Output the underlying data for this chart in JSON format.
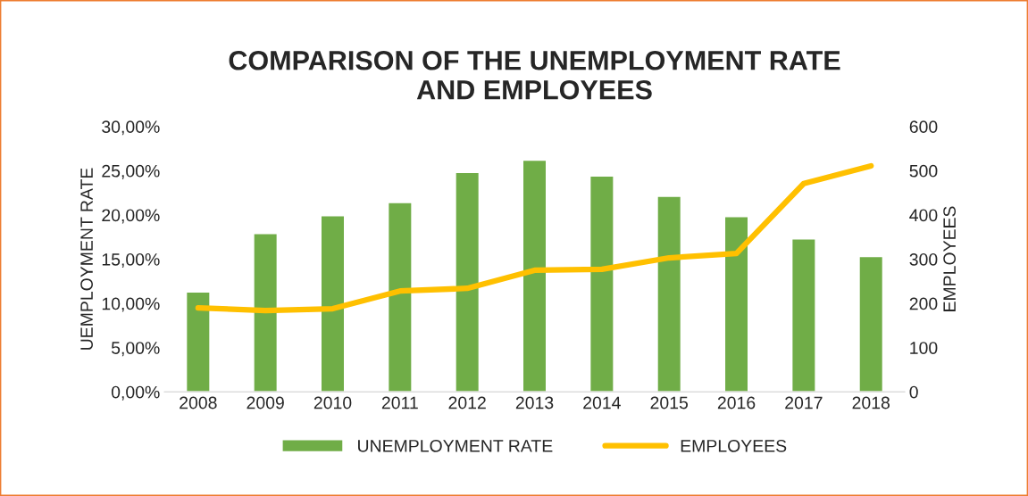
{
  "chart_data": {
    "type": "bar",
    "title": "COMPARISON OF THE UNEMPLOYMENT RATE\nAND EMPLOYEES",
    "ylabel": "UEMPLOYMENT RATE",
    "y2label": "EMPLOYEES",
    "categories": [
      "2008",
      "2009",
      "2010",
      "2011",
      "2012",
      "2013",
      "2014",
      "2015",
      "2016",
      "2017",
      "2018"
    ],
    "series": [
      {
        "name": "UNEMPLOYMENT RATE",
        "color": "#70ad47",
        "values": [
          11.3,
          17.9,
          19.9,
          21.4,
          24.8,
          26.2,
          24.4,
          22.1,
          19.8,
          17.3,
          15.3
        ]
      },
      {
        "name": "EMPLOYEES",
        "type": "line",
        "axis": "y2",
        "color": "#ffc000",
        "values": [
          190,
          184,
          188,
          228,
          234,
          275,
          277,
          303,
          313,
          471,
          511
        ]
      }
    ],
    "ylim": [
      0,
      30
    ],
    "yticks": [
      {
        "value": 0,
        "label": "0,00%"
      },
      {
        "value": 5,
        "label": "5,00%"
      },
      {
        "value": 10,
        "label": "10,00%"
      },
      {
        "value": 15,
        "label": "15,00%"
      },
      {
        "value": 20,
        "label": "20,00%"
      },
      {
        "value": 25,
        "label": "25,00%"
      },
      {
        "value": 30,
        "label": "30,00%"
      }
    ],
    "y2lim": [
      0,
      600
    ],
    "y2ticks": [
      0,
      100,
      200,
      300,
      400,
      500,
      600
    ],
    "grid": false,
    "legend": "bottom",
    "marker": "none",
    "line_style": "solid"
  }
}
